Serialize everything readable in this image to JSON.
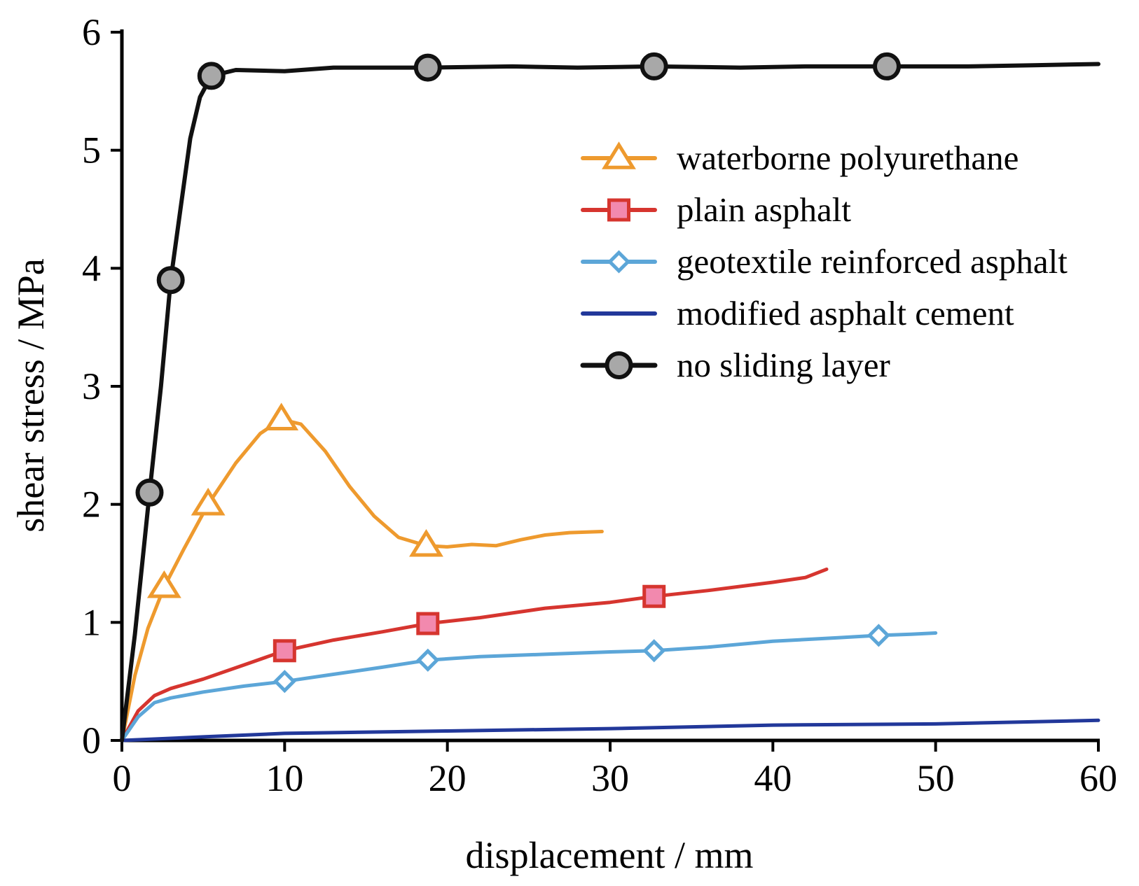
{
  "chart_data": {
    "type": "line",
    "title": "",
    "xlabel": "displacement / mm",
    "ylabel": "shear stress / MPa",
    "xlim": [
      0,
      60
    ],
    "ylim": [
      0,
      6
    ],
    "xticks": [
      0,
      10,
      20,
      30,
      40,
      50,
      60
    ],
    "yticks": [
      0,
      1,
      2,
      3,
      4,
      5,
      6
    ],
    "grid": false,
    "legend_position": "right",
    "series": [
      {
        "name": "waterborne polyurethane",
        "color": "#EE9A2E",
        "marker": "triangle",
        "marker_fill": "#FFFFFF",
        "points": [
          [
            0,
            0
          ],
          [
            0.8,
            0.55
          ],
          [
            1.6,
            0.95
          ],
          [
            2.6,
            1.3
          ],
          [
            3.8,
            1.62
          ],
          [
            5.3,
            2.0
          ],
          [
            7.0,
            2.35
          ],
          [
            8.5,
            2.6
          ],
          [
            9.8,
            2.72
          ],
          [
            11.0,
            2.68
          ],
          [
            12.5,
            2.45
          ],
          [
            14.0,
            2.15
          ],
          [
            15.5,
            1.9
          ],
          [
            17.0,
            1.72
          ],
          [
            18.7,
            1.65
          ],
          [
            20,
            1.64
          ],
          [
            21.5,
            1.66
          ],
          [
            23,
            1.65
          ],
          [
            24.5,
            1.7
          ],
          [
            26,
            1.74
          ],
          [
            27.5,
            1.76
          ],
          [
            29.5,
            1.77
          ]
        ],
        "markers": [
          [
            2.6,
            1.3
          ],
          [
            5.3,
            2.0
          ],
          [
            9.8,
            2.72
          ],
          [
            18.7,
            1.65
          ]
        ]
      },
      {
        "name": "plain asphalt",
        "color": "#D6352F",
        "marker": "square",
        "marker_fill": "#F289AE",
        "points": [
          [
            0,
            0
          ],
          [
            1,
            0.25
          ],
          [
            2,
            0.38
          ],
          [
            3,
            0.44
          ],
          [
            5,
            0.52
          ],
          [
            7.5,
            0.64
          ],
          [
            10,
            0.76
          ],
          [
            13,
            0.85
          ],
          [
            16,
            0.92
          ],
          [
            18.8,
            0.99
          ],
          [
            22,
            1.04
          ],
          [
            26,
            1.12
          ],
          [
            30,
            1.17
          ],
          [
            32.7,
            1.22
          ],
          [
            36,
            1.27
          ],
          [
            40,
            1.34
          ],
          [
            42,
            1.38
          ],
          [
            43.3,
            1.45
          ]
        ],
        "markers": [
          [
            10,
            0.76
          ],
          [
            18.8,
            0.99
          ],
          [
            32.7,
            1.22
          ]
        ]
      },
      {
        "name": "geotextile reinforced asphalt",
        "color": "#5CA6D8",
        "marker": "diamond",
        "marker_fill": "#FFFFFF",
        "points": [
          [
            0,
            0
          ],
          [
            1,
            0.2
          ],
          [
            2,
            0.32
          ],
          [
            3,
            0.36
          ],
          [
            5,
            0.41
          ],
          [
            7.5,
            0.46
          ],
          [
            10,
            0.5
          ],
          [
            13,
            0.56
          ],
          [
            16,
            0.62
          ],
          [
            18.8,
            0.68
          ],
          [
            22,
            0.71
          ],
          [
            26,
            0.73
          ],
          [
            30,
            0.75
          ],
          [
            32.7,
            0.76
          ],
          [
            36,
            0.79
          ],
          [
            40,
            0.84
          ],
          [
            44,
            0.87
          ],
          [
            46.5,
            0.89
          ],
          [
            48.5,
            0.9
          ],
          [
            50,
            0.91
          ]
        ],
        "markers": [
          [
            10,
            0.5
          ],
          [
            18.8,
            0.68
          ],
          [
            32.7,
            0.76
          ],
          [
            46.5,
            0.89
          ]
        ]
      },
      {
        "name": "modified asphalt cement",
        "color": "#22389A",
        "marker": "none",
        "marker_fill": "",
        "points": [
          [
            0,
            0
          ],
          [
            5,
            0.03
          ],
          [
            10,
            0.06
          ],
          [
            20,
            0.08
          ],
          [
            30,
            0.1
          ],
          [
            40,
            0.13
          ],
          [
            50,
            0.14
          ],
          [
            60,
            0.17
          ]
        ],
        "markers": []
      },
      {
        "name": "no sliding layer",
        "color": "#111111",
        "marker": "circle",
        "marker_fill": "#A8A8A8",
        "points": [
          [
            0,
            0
          ],
          [
            0.8,
            0.9
          ],
          [
            1.7,
            2.1
          ],
          [
            2.4,
            3.0
          ],
          [
            3.0,
            3.9
          ],
          [
            3.6,
            4.5
          ],
          [
            4.2,
            5.1
          ],
          [
            4.8,
            5.45
          ],
          [
            5.5,
            5.63
          ],
          [
            7,
            5.68
          ],
          [
            10,
            5.67
          ],
          [
            13,
            5.7
          ],
          [
            18.8,
            5.7
          ],
          [
            24,
            5.71
          ],
          [
            28,
            5.7
          ],
          [
            32.7,
            5.71
          ],
          [
            38,
            5.7
          ],
          [
            42,
            5.71
          ],
          [
            47,
            5.71
          ],
          [
            52,
            5.71
          ],
          [
            56,
            5.72
          ],
          [
            60,
            5.73
          ]
        ],
        "markers": [
          [
            1.7,
            2.1
          ],
          [
            3.0,
            3.9
          ],
          [
            5.5,
            5.63
          ],
          [
            18.8,
            5.7
          ],
          [
            32.7,
            5.71
          ],
          [
            47,
            5.71
          ]
        ]
      }
    ]
  }
}
